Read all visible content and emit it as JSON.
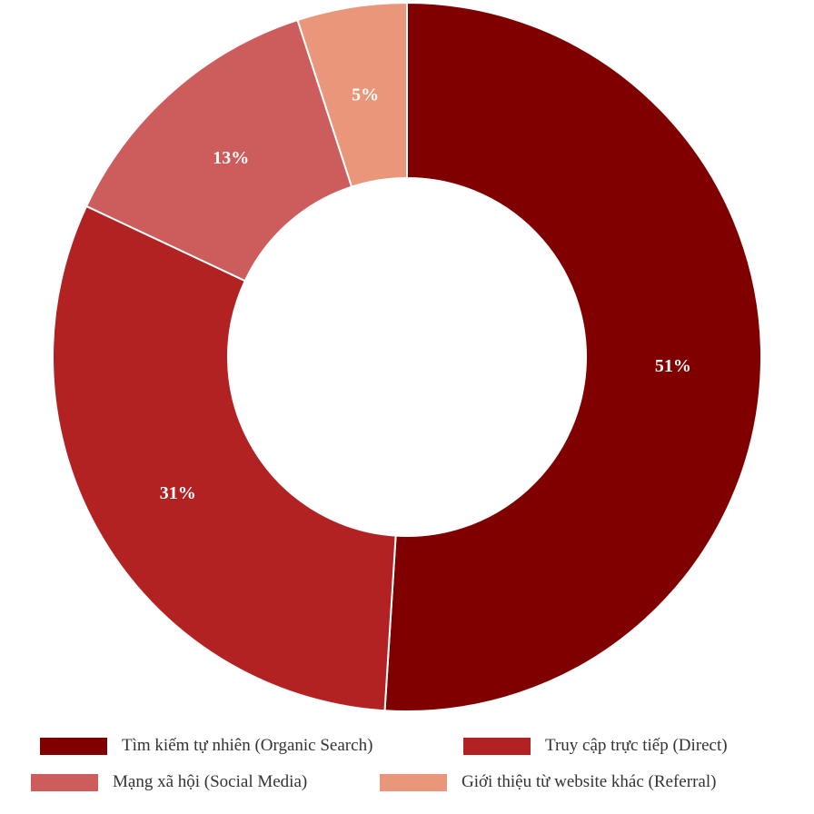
{
  "chart_data": {
    "type": "pie",
    "donut": true,
    "start_angle_deg": 0,
    "direction": "clockwise",
    "legend_position": "bottom",
    "slices": [
      {
        "name": "Tìm kiếm tự nhiên (Organic Search)",
        "value": 51,
        "label": "51%",
        "color": "#800000"
      },
      {
        "name": "Truy cập trực tiếp (Direct)",
        "value": 31,
        "label": "31%",
        "color": "#b22222"
      },
      {
        "name": "Mạng xã hội (Social Media)",
        "value": 13,
        "label": "13%",
        "color": "#cd5c5c"
      },
      {
        "name": "Giới thiệu từ website khác (Referral)",
        "value": 5,
        "label": "5%",
        "color": "#e9967a"
      }
    ]
  }
}
